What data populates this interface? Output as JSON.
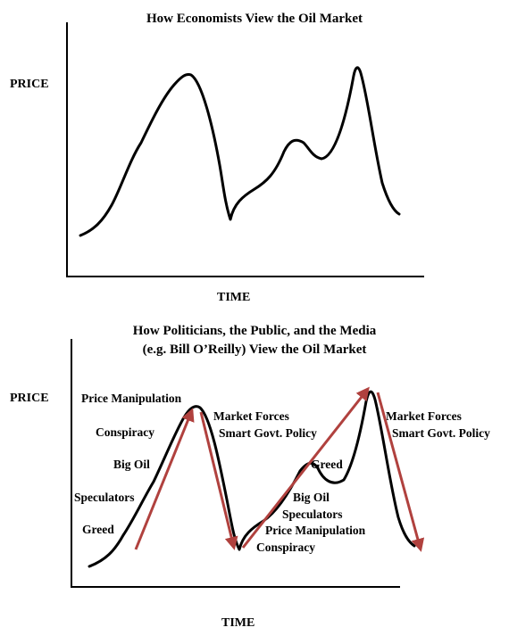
{
  "top_chart": {
    "title": "How Economists View the Oil Market",
    "ylabel": "PRICE",
    "xlabel": "TIME"
  },
  "bottom_chart": {
    "title_line1": "How Politicians, the Public, and the Media",
    "title_line2": "(e.g. Bill O’Reilly) View the Oil Market",
    "ylabel": "PRICE",
    "xlabel": "TIME",
    "rise1_labels": [
      "Greed",
      "Speculators",
      "Big Oil",
      "Conspiracy",
      "Price Manipulation"
    ],
    "fall1_labels": [
      "Market Forces",
      "Smart Govt. Policy"
    ],
    "rise2_labels": [
      "Greed",
      "Big Oil",
      "Speculators",
      "Price Manipulation",
      "Conspiracy"
    ],
    "fall2_labels": [
      "Market Forces",
      "Smart Govt. Policy"
    ]
  },
  "colors": {
    "curve": "#000000",
    "arrow": "#b0413e"
  }
}
